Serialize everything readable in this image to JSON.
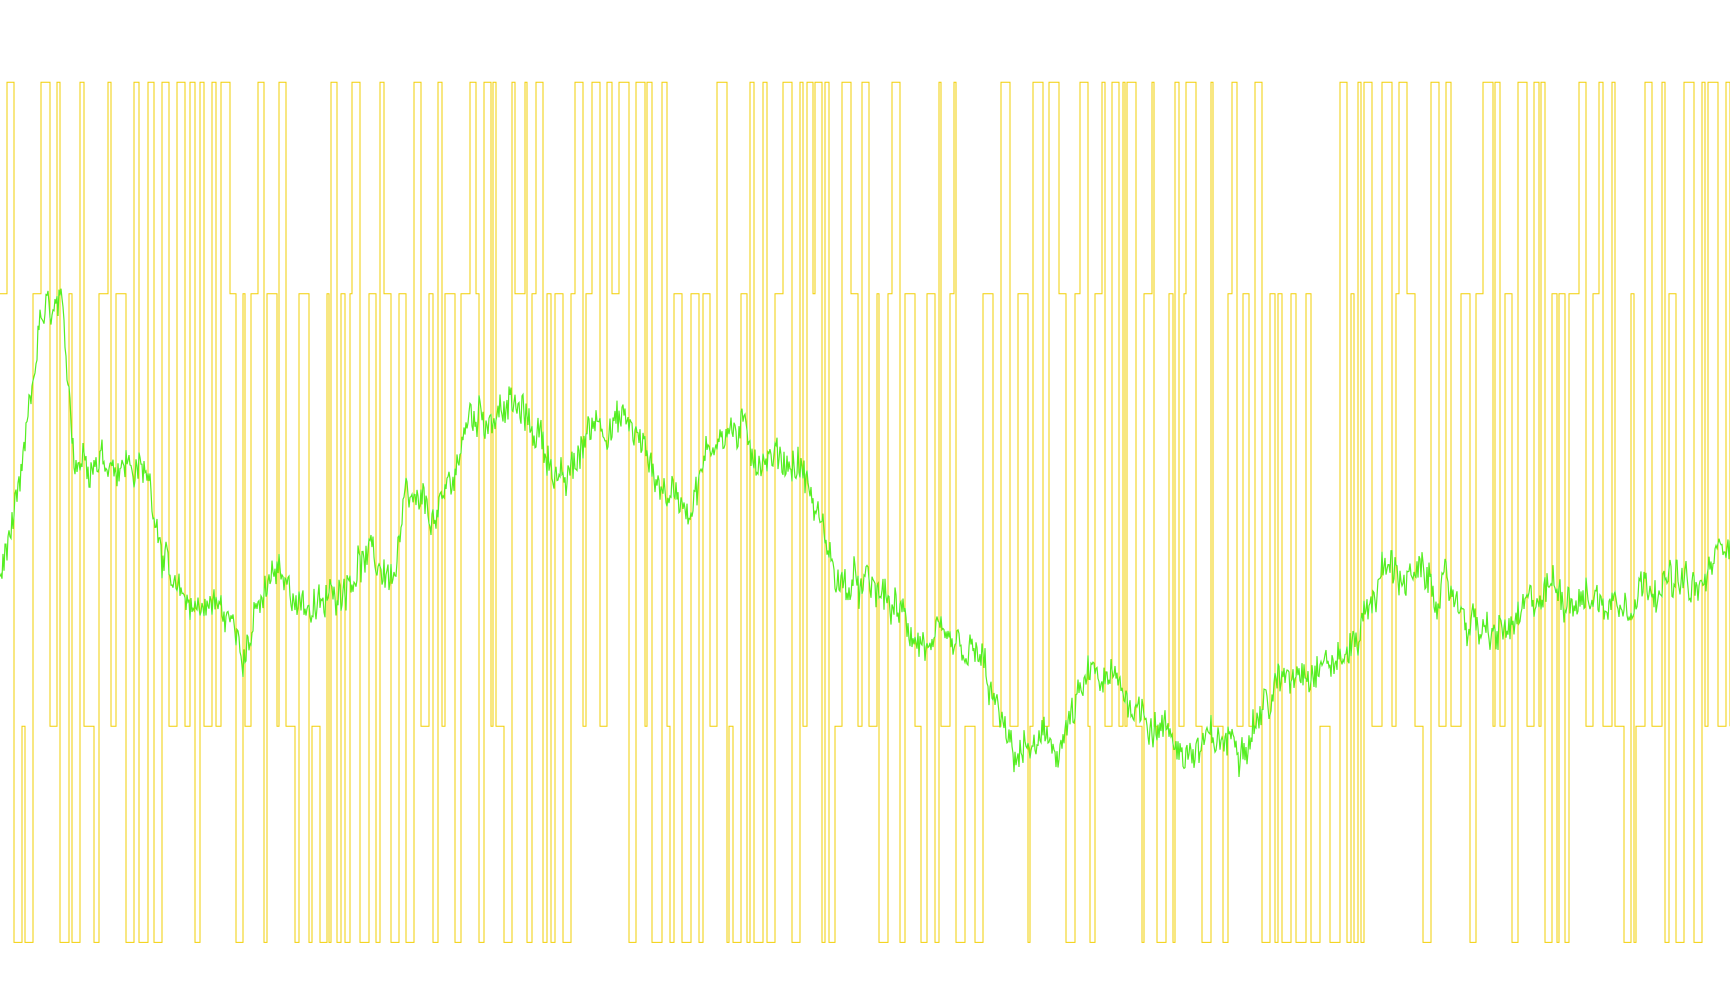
{
  "chart_data": {
    "type": "line",
    "title": "",
    "xlabel": "",
    "ylabel": "",
    "grid": false,
    "legend": "none",
    "x_count": 600,
    "ylim": [
      0,
      1
    ],
    "colors": {
      "price": "#55ee22",
      "signal": "#f2cf05",
      "background": "#ffffff"
    },
    "series": [
      {
        "role": "price",
        "anchors": [
          [
            0,
            0.43
          ],
          [
            20,
            0.51
          ],
          [
            40,
            0.7
          ],
          [
            60,
            0.71
          ],
          [
            75,
            0.56
          ],
          [
            100,
            0.56
          ],
          [
            130,
            0.55
          ],
          [
            150,
            0.53
          ],
          [
            175,
            0.4
          ],
          [
            215,
            0.4
          ],
          [
            245,
            0.36
          ],
          [
            275,
            0.43
          ],
          [
            320,
            0.39
          ],
          [
            360,
            0.45
          ],
          [
            395,
            0.43
          ],
          [
            405,
            0.5
          ],
          [
            440,
            0.49
          ],
          [
            470,
            0.6
          ],
          [
            510,
            0.61
          ],
          [
            540,
            0.58
          ],
          [
            565,
            0.52
          ],
          [
            595,
            0.6
          ],
          [
            630,
            0.59
          ],
          [
            665,
            0.52
          ],
          [
            690,
            0.51
          ],
          [
            720,
            0.59
          ],
          [
            740,
            0.58
          ],
          [
            760,
            0.56
          ],
          [
            800,
            0.55
          ],
          [
            840,
            0.42
          ],
          [
            880,
            0.41
          ],
          [
            930,
            0.35
          ],
          [
            980,
            0.34
          ],
          [
            1010,
            0.24
          ],
          [
            1060,
            0.25
          ],
          [
            1090,
            0.32
          ],
          [
            1120,
            0.31
          ],
          [
            1190,
            0.24
          ],
          [
            1240,
            0.26
          ],
          [
            1300,
            0.34
          ],
          [
            1345,
            0.34
          ],
          [
            1385,
            0.44
          ],
          [
            1450,
            0.41
          ],
          [
            1490,
            0.36
          ],
          [
            1520,
            0.38
          ],
          [
            1550,
            0.42
          ],
          [
            1610,
            0.4
          ],
          [
            1655,
            0.43
          ],
          [
            1700,
            0.41
          ],
          [
            1730,
            0.48
          ]
        ]
      },
      {
        "role": "signal",
        "levels": [
          0.955,
          0.73,
          0.27,
          0.04
        ]
      }
    ]
  }
}
